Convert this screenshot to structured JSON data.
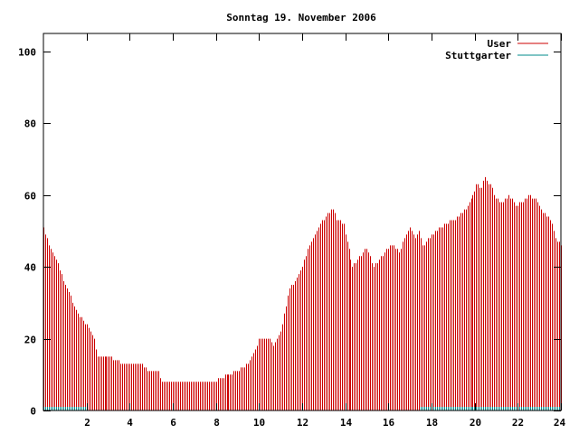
{
  "chart_data": {
    "type": "bar",
    "title": "Sonntag 19. November 2006",
    "xlabel": "",
    "ylabel": "",
    "xlim": [
      0,
      24
    ],
    "ylim": [
      0,
      105
    ],
    "x_ticks": [
      2,
      4,
      6,
      8,
      10,
      12,
      14,
      16,
      18,
      20,
      22,
      24
    ],
    "y_ticks": [
      0,
      20,
      40,
      60,
      80,
      100
    ],
    "grid": false,
    "legend_position": "top-right",
    "sample_interval_hours": 0.0833,
    "series": [
      {
        "name": "User",
        "color": "#cc0000",
        "style": "impulses",
        "anchors": [
          [
            0.0,
            51
          ],
          [
            0.2,
            47
          ],
          [
            0.4,
            44
          ],
          [
            0.6,
            42
          ],
          [
            0.8,
            38
          ],
          [
            1.0,
            35
          ],
          [
            1.2,
            33
          ],
          [
            1.4,
            29
          ],
          [
            1.6,
            27
          ],
          [
            1.8,
            25
          ],
          [
            2.0,
            24
          ],
          [
            2.2,
            22
          ],
          [
            2.35,
            20
          ],
          [
            2.45,
            15
          ],
          [
            3.0,
            15
          ],
          [
            3.4,
            14
          ],
          [
            3.6,
            13
          ],
          [
            4.6,
            13
          ],
          [
            4.8,
            11
          ],
          [
            5.3,
            11
          ],
          [
            5.5,
            8
          ],
          [
            7.9,
            8
          ],
          [
            8.2,
            9
          ],
          [
            8.5,
            10
          ],
          [
            9.0,
            11
          ],
          [
            9.3,
            12
          ],
          [
            9.6,
            14
          ],
          [
            9.9,
            18
          ],
          [
            10.0,
            20
          ],
          [
            10.5,
            20
          ],
          [
            10.7,
            18
          ],
          [
            11.0,
            22
          ],
          [
            11.2,
            28
          ],
          [
            11.4,
            34
          ],
          [
            11.7,
            36
          ],
          [
            12.0,
            40
          ],
          [
            12.2,
            44
          ],
          [
            12.5,
            48
          ],
          [
            12.8,
            52
          ],
          [
            13.2,
            55
          ],
          [
            13.4,
            56
          ],
          [
            13.6,
            53
          ],
          [
            13.9,
            52
          ],
          [
            14.2,
            44
          ],
          [
            14.3,
            40
          ],
          [
            14.6,
            42
          ],
          [
            14.9,
            45
          ],
          [
            15.1,
            44
          ],
          [
            15.3,
            40
          ],
          [
            15.6,
            42
          ],
          [
            15.9,
            45
          ],
          [
            16.2,
            46
          ],
          [
            16.5,
            44
          ],
          [
            16.8,
            49
          ],
          [
            17.0,
            51
          ],
          [
            17.2,
            48
          ],
          [
            17.4,
            50
          ],
          [
            17.6,
            46
          ],
          [
            17.9,
            48
          ],
          [
            18.2,
            50
          ],
          [
            18.6,
            52
          ],
          [
            19.0,
            53
          ],
          [
            19.4,
            55
          ],
          [
            19.7,
            57
          ],
          [
            19.9,
            60
          ],
          [
            20.1,
            63
          ],
          [
            20.3,
            62
          ],
          [
            20.5,
            65
          ],
          [
            20.8,
            62
          ],
          [
            21.0,
            59
          ],
          [
            21.3,
            58
          ],
          [
            21.6,
            60
          ],
          [
            21.9,
            57
          ],
          [
            22.2,
            58
          ],
          [
            22.5,
            60
          ],
          [
            22.8,
            59
          ],
          [
            23.0,
            57
          ],
          [
            23.2,
            55
          ],
          [
            23.5,
            53
          ],
          [
            23.75,
            48
          ],
          [
            24.0,
            46
          ]
        ]
      },
      {
        "name": "Stuttgarter",
        "color": "#008b8b",
        "style": "impulses",
        "anchors": [
          [
            0.0,
            1
          ],
          [
            2.0,
            1
          ],
          [
            2.1,
            0
          ],
          [
            17.4,
            0
          ],
          [
            17.5,
            1
          ],
          [
            24.0,
            1
          ]
        ]
      }
    ]
  }
}
